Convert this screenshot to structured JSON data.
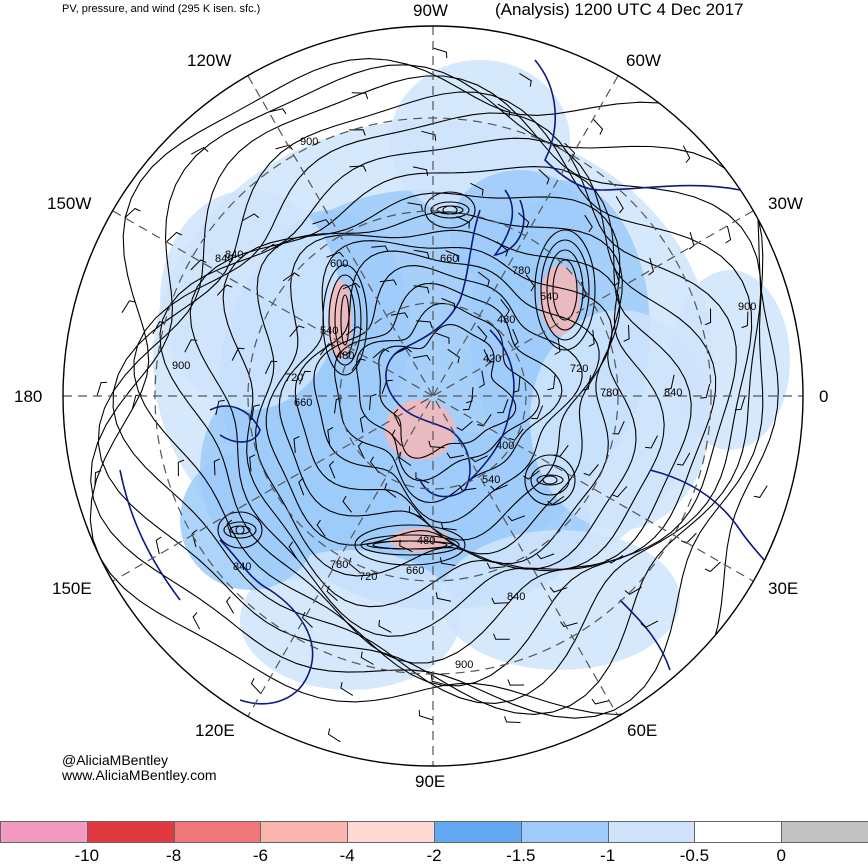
{
  "header": {
    "product": "PV, pressure, and wind (295 K isen. sfc.)",
    "valid": "(Analysis) 1200 UTC 4 Dec 2017"
  },
  "longitude_labels": {
    "top": "90W",
    "upper_left": "120W",
    "upper_right": "60W",
    "left_upper": "150W",
    "right_upper": "30W",
    "left": "180",
    "right": "0",
    "left_lower": "150E",
    "right_lower": "30E",
    "lower_left": "120E",
    "lower_right": "60E",
    "bottom": "90E"
  },
  "contour_labels": [
    "900",
    "840",
    "840",
    "600",
    "660",
    "780",
    "540",
    "480",
    "720",
    "660",
    "900",
    "540",
    "480",
    "420",
    "720",
    "780",
    "840",
    "900",
    "400",
    "540",
    "480",
    "660",
    "720",
    "780",
    "840",
    "840",
    "900"
  ],
  "credit": {
    "handle": "@AliciaMBentley",
    "site": "www.AliciaMBentley.com"
  },
  "colorbar": {
    "colors": [
      "#f49ac1",
      "#e0393f",
      "#f37779",
      "#fbb5b1",
      "#fddad5",
      "#62a9f4",
      "#9ecbf9",
      "#cfe4fb",
      "#ffffff",
      "#c2c2c2"
    ],
    "tick_labels": [
      "-10",
      "-8",
      "-6",
      "-4",
      "-2",
      "-1.5",
      "-1",
      "-0.5",
      "0"
    ]
  },
  "colors": {
    "coast": "#0b1a80",
    "contour": "#000000",
    "pv_shade": "#9ecbf9",
    "pv_light": "#cfe4fb"
  }
}
